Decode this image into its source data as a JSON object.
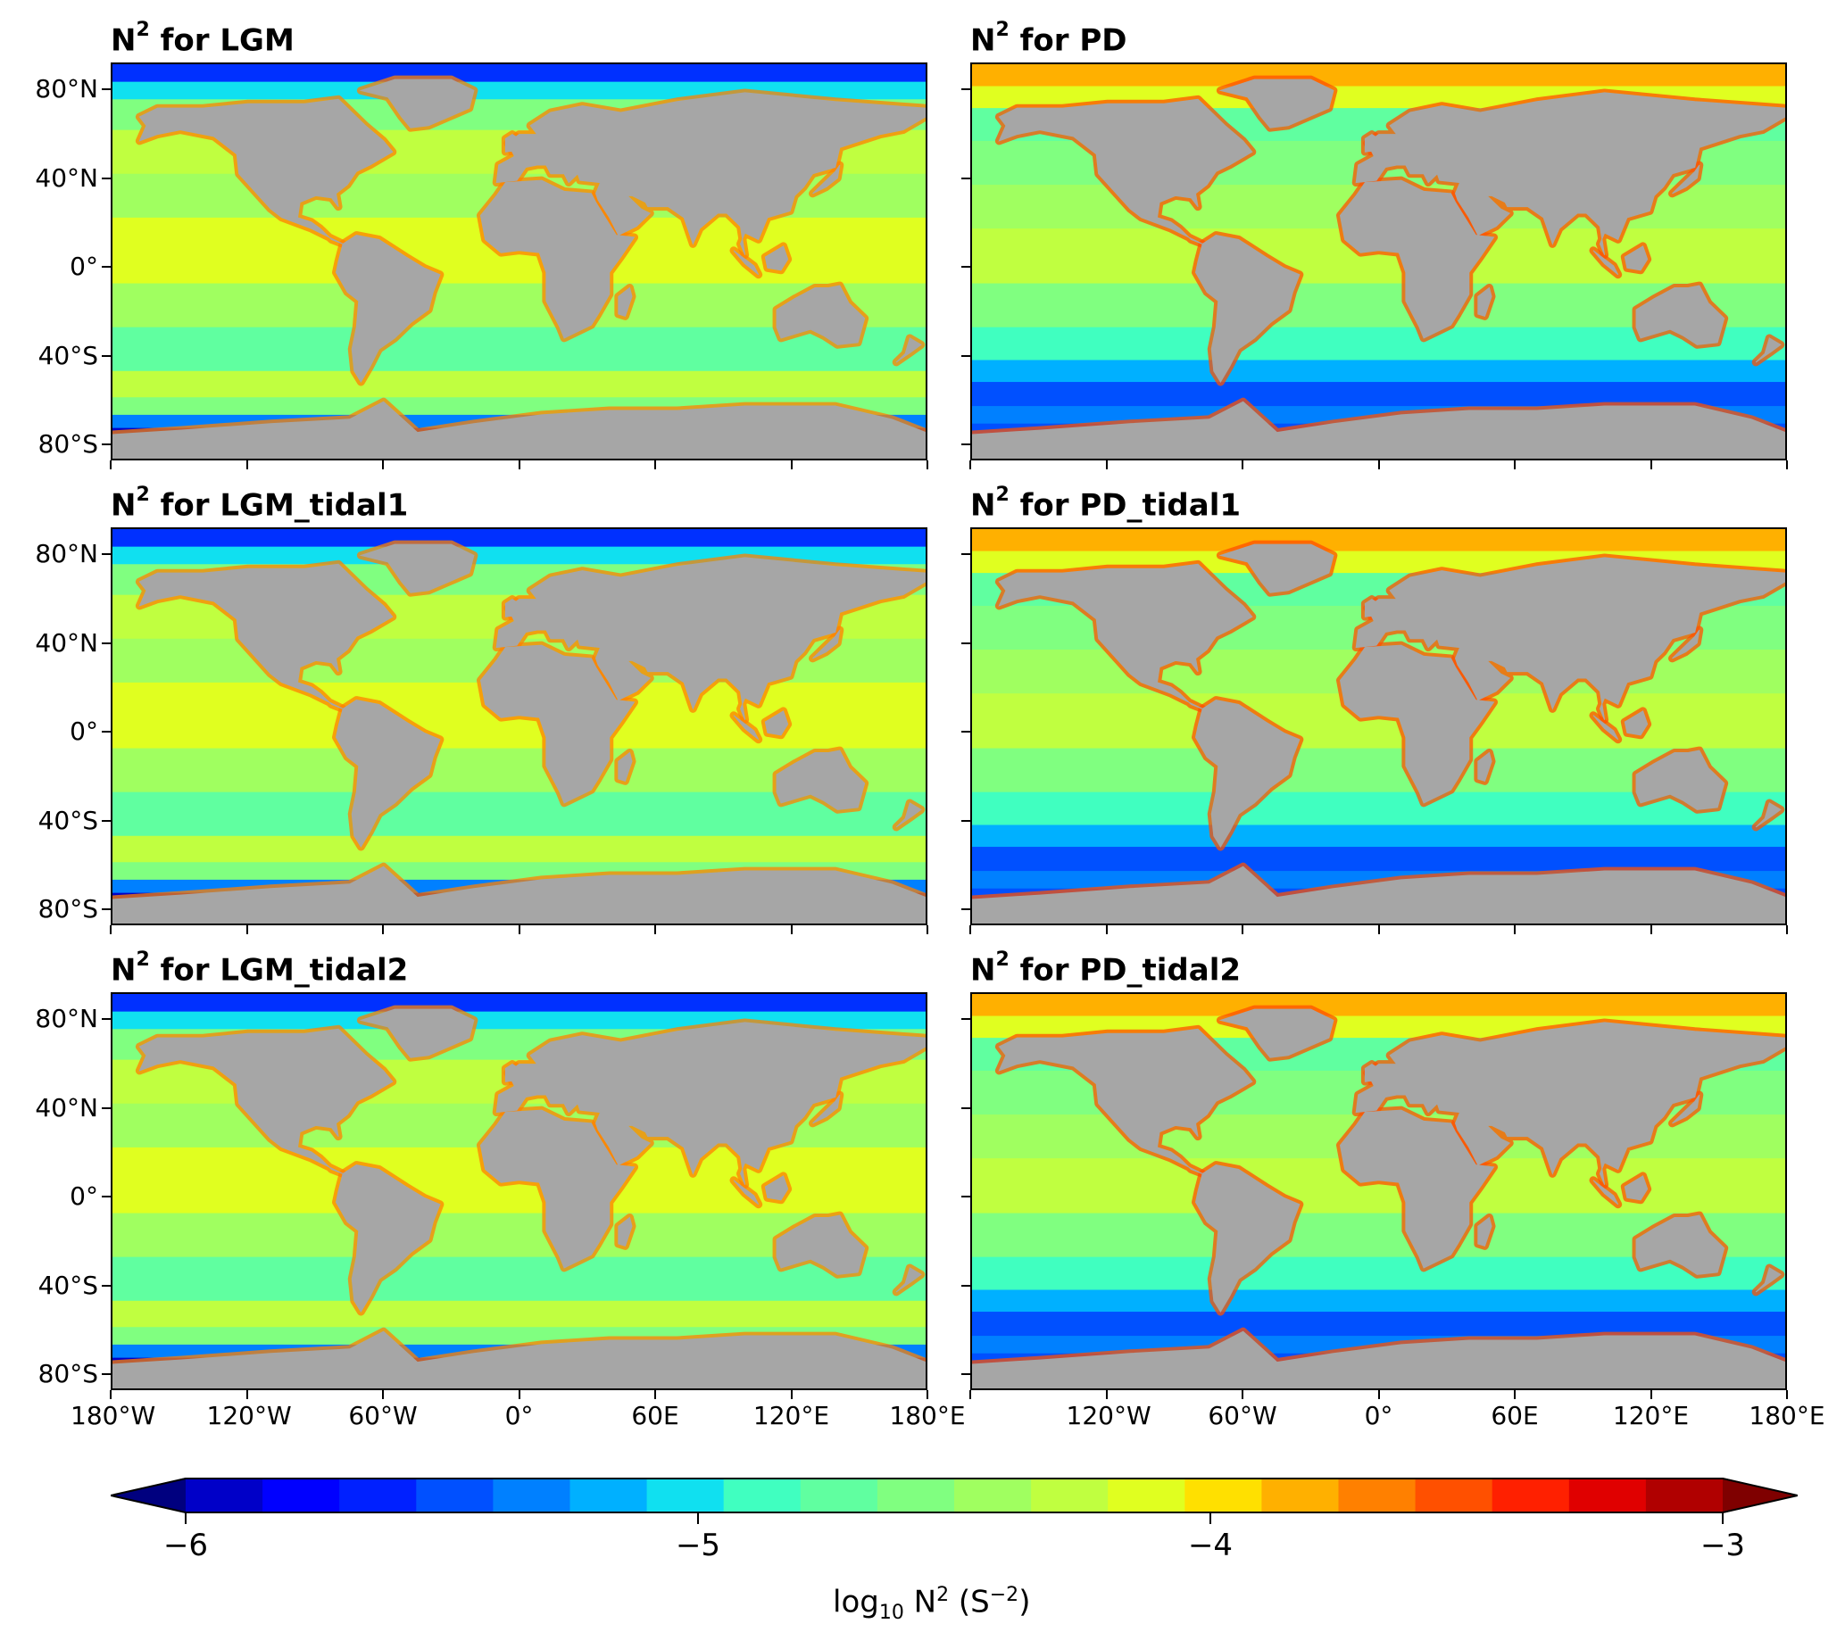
{
  "panels": [
    {
      "id": "lgm",
      "title_main": "N",
      "title_sup": "2",
      "title_rest": " for LGM",
      "scenario": "LGM"
    },
    {
      "id": "pd",
      "title_main": "N",
      "title_sup": "2",
      "title_rest": " for PD",
      "scenario": "PD"
    },
    {
      "id": "lgm_tidal1",
      "title_main": "N",
      "title_sup": "2",
      "title_rest": " for LGM_tidal1",
      "scenario": "LGM"
    },
    {
      "id": "pd_tidal1",
      "title_main": "N",
      "title_sup": "2",
      "title_rest": " for PD_tidal1",
      "scenario": "PD"
    },
    {
      "id": "lgm_tidal2",
      "title_main": "N",
      "title_sup": "2",
      "title_rest": " for LGM_tidal2",
      "scenario": "LGM"
    },
    {
      "id": "pd_tidal2",
      "title_main": "N",
      "title_sup": "2",
      "title_rest": " for PD_tidal2",
      "scenario": "PD"
    }
  ],
  "y_ticks": [
    "80°N",
    "40°N",
    "0°",
    "40°S",
    "80°S"
  ],
  "x_ticks_left": [
    "180°W",
    "120°W",
    "60°W",
    "0°",
    "60E",
    "120°E",
    "180°E"
  ],
  "x_ticks_right": [
    "120°W",
    "60°W",
    "0°",
    "60E",
    "120°E",
    "180°E"
  ],
  "colorbar": {
    "min": -6,
    "max": -3,
    "extend": "both",
    "tick_labels": [
      "−6",
      "−5",
      "−4",
      "−3"
    ],
    "tick_values": [
      -6,
      -5,
      -4,
      -3
    ],
    "label_prefix": "log",
    "label_sub": "10",
    "label_mid": " N",
    "label_sup1": "2",
    "label_unit_open": " (S",
    "label_sup2": "−2",
    "label_unit_close": ")",
    "colors": [
      "#00007f",
      "#0000c8",
      "#0000ff",
      "#0020ff",
      "#0050ff",
      "#0080ff",
      "#00b0ff",
      "#10e0f0",
      "#40ffc0",
      "#60ffa0",
      "#80ff80",
      "#a0ff60",
      "#c0ff40",
      "#e0ff20",
      "#ffe000",
      "#ffb000",
      "#ff8000",
      "#ff5000",
      "#ff2000",
      "#e00000",
      "#b00000",
      "#7f0000"
    ]
  },
  "land_color": "#a6a6a6"
}
